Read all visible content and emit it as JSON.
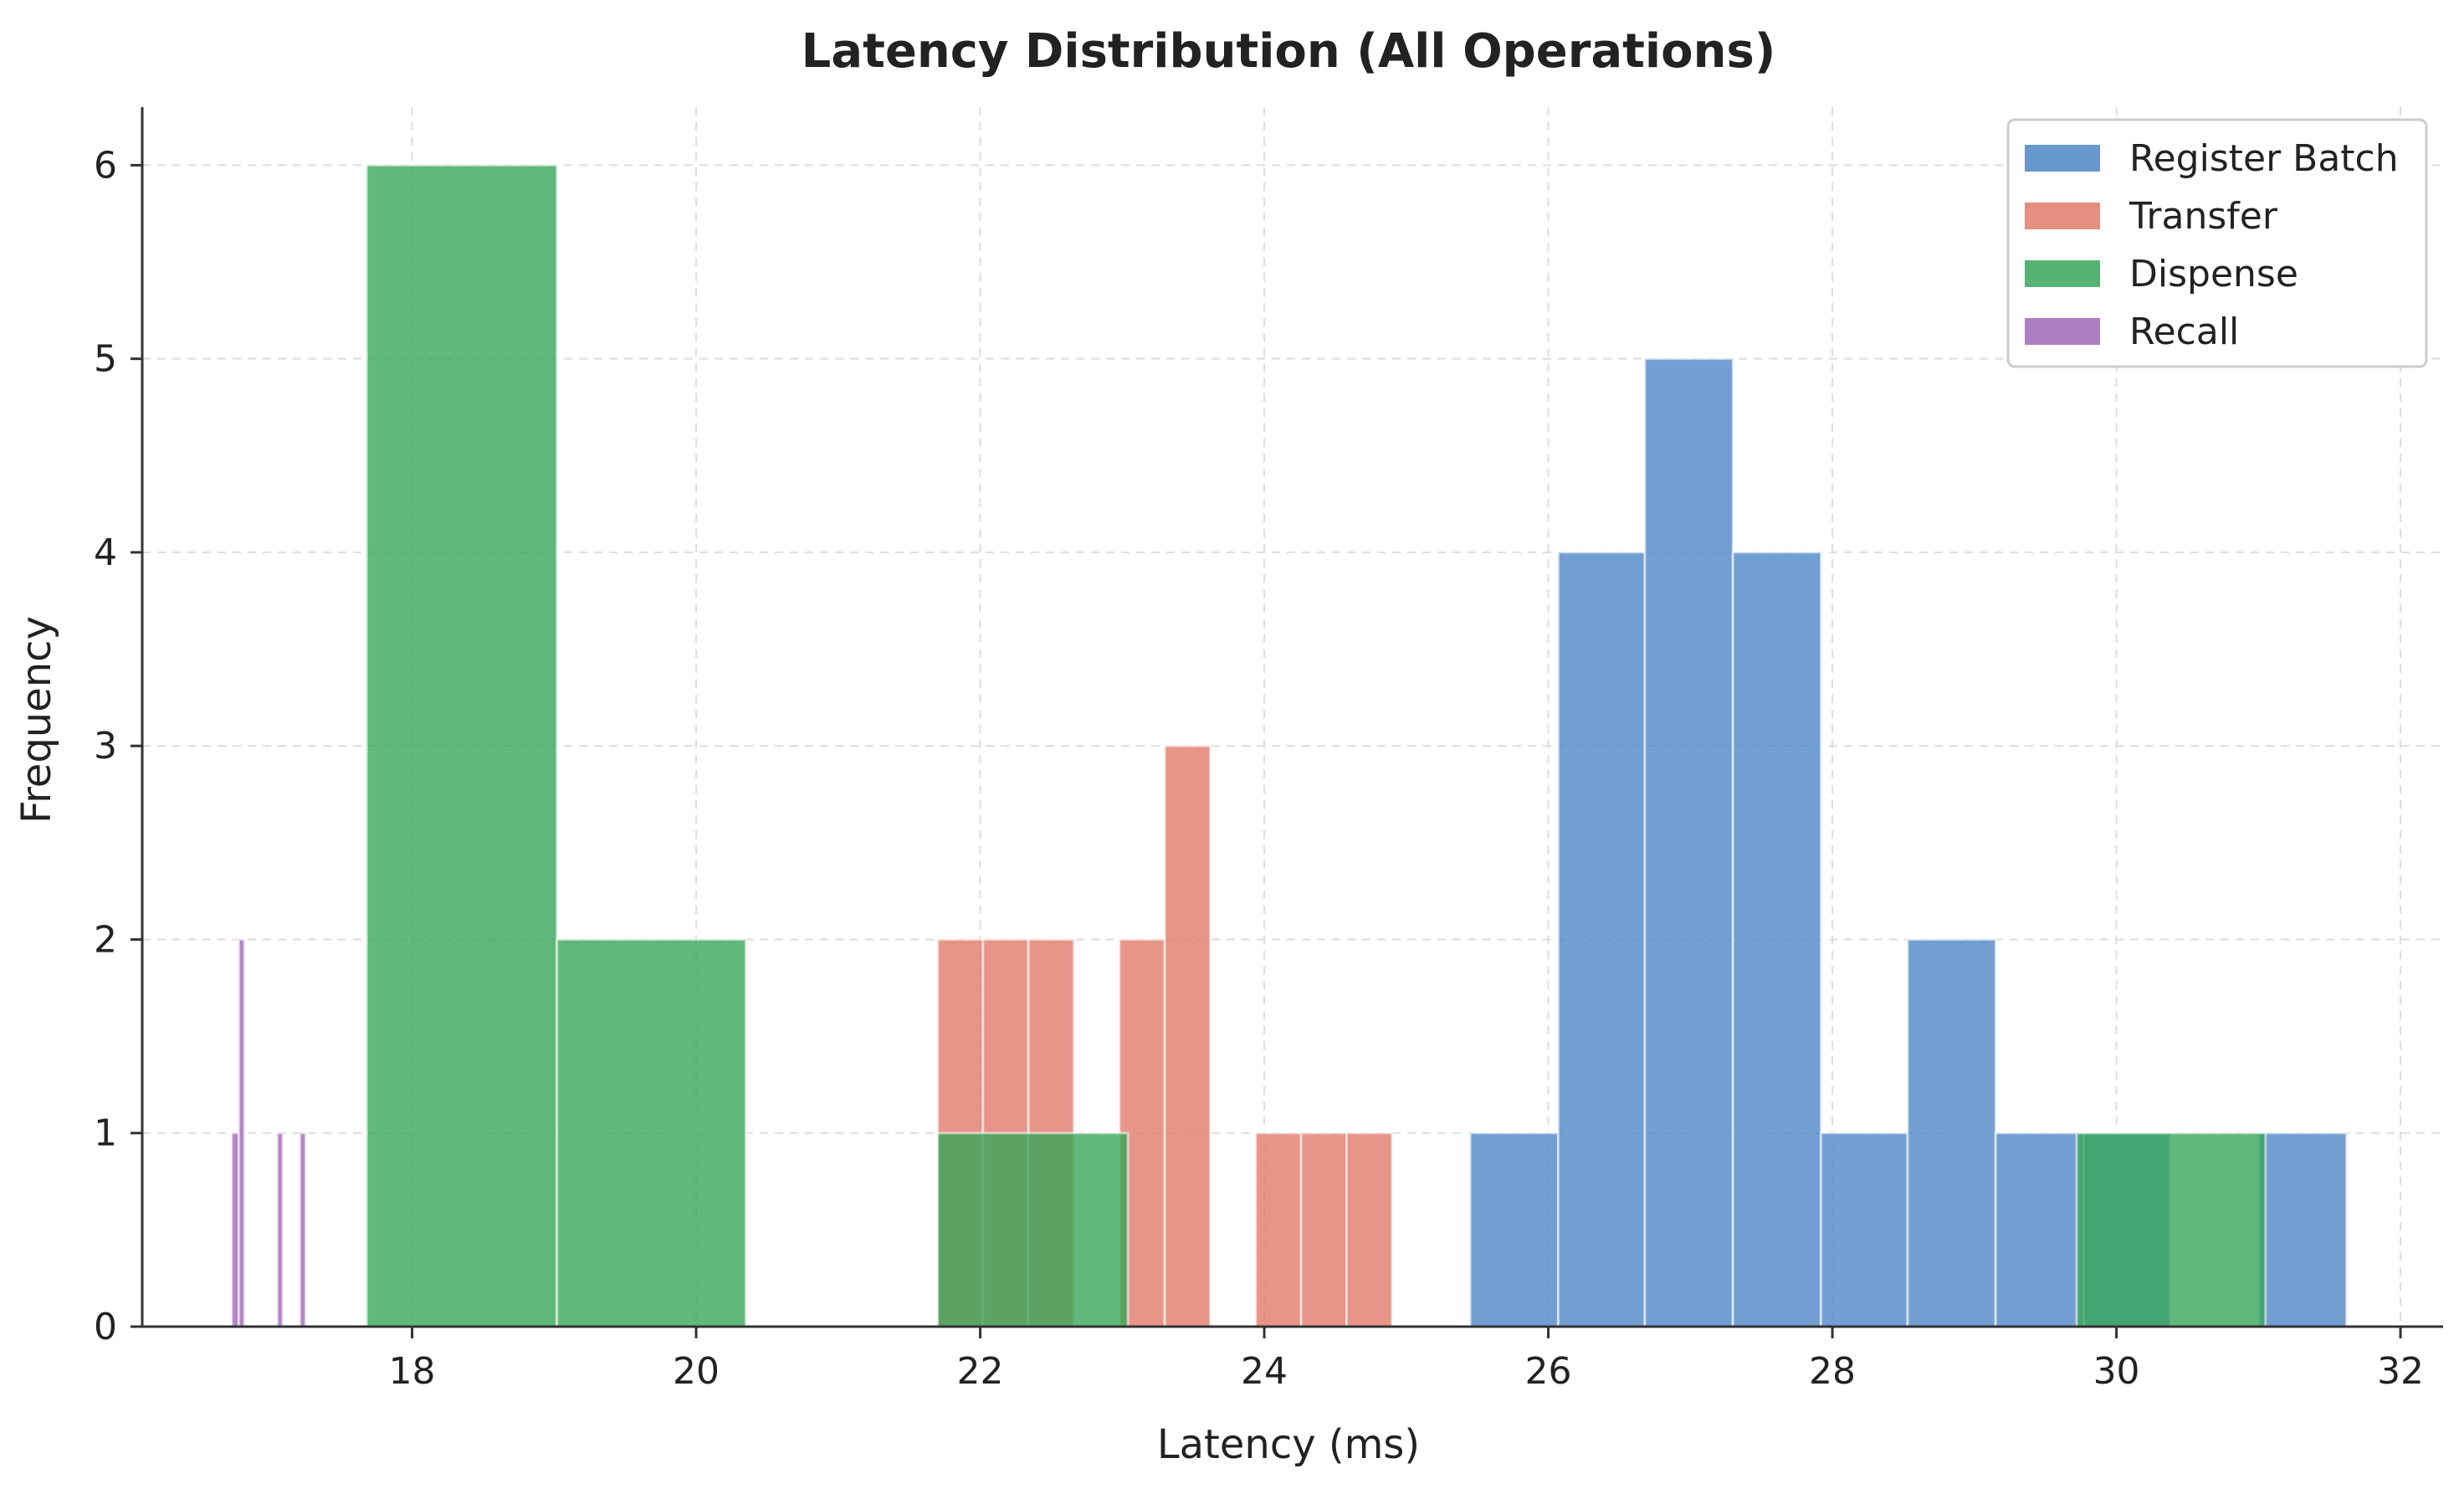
{
  "chart_data": {
    "type": "bar",
    "subtype": "overlapping-histogram",
    "title": "Latency Distribution (All Operations)",
    "xlabel": "Latency (ms)",
    "ylabel": "Frequency",
    "xlim": [
      16.1,
      32.3
    ],
    "ylim": [
      0,
      6.3
    ],
    "xticks": [
      18,
      20,
      22,
      24,
      26,
      28,
      30,
      32
    ],
    "yticks": [
      0,
      1,
      2,
      3,
      4,
      5,
      6
    ],
    "grid": true,
    "legend_position": "top-right",
    "series": [
      {
        "name": "Register Batch",
        "color": "#4f86c6",
        "bins": [
          {
            "x0": 25.45,
            "x1": 26.07,
            "count": 1
          },
          {
            "x0": 26.07,
            "x1": 26.68,
            "count": 4
          },
          {
            "x0": 26.68,
            "x1": 27.3,
            "count": 5
          },
          {
            "x0": 27.3,
            "x1": 27.92,
            "count": 4
          },
          {
            "x0": 27.92,
            "x1": 28.53,
            "count": 1
          },
          {
            "x0": 28.53,
            "x1": 29.15,
            "count": 2
          },
          {
            "x0": 29.15,
            "x1": 29.77,
            "count": 1
          },
          {
            "x0": 29.77,
            "x1": 30.38,
            "count": 1
          },
          {
            "x0": 30.38,
            "x1": 31.0,
            "count": 0
          },
          {
            "x0": 31.0,
            "x1": 31.62,
            "count": 1
          }
        ]
      },
      {
        "name": "Transfer",
        "color": "#e07b6a",
        "bins": [
          {
            "x0": 21.7,
            "x1": 22.02,
            "count": 2
          },
          {
            "x0": 22.02,
            "x1": 22.34,
            "count": 2
          },
          {
            "x0": 22.34,
            "x1": 22.66,
            "count": 2
          },
          {
            "x0": 22.66,
            "x1": 22.98,
            "count": 0
          },
          {
            "x0": 22.98,
            "x1": 23.3,
            "count": 2
          },
          {
            "x0": 23.3,
            "x1": 23.62,
            "count": 3
          },
          {
            "x0": 23.62,
            "x1": 23.94,
            "count": 0
          },
          {
            "x0": 23.94,
            "x1": 24.26,
            "count": 1
          },
          {
            "x0": 24.26,
            "x1": 24.58,
            "count": 1
          },
          {
            "x0": 24.58,
            "x1": 24.9,
            "count": 1
          }
        ]
      },
      {
        "name": "Dispense",
        "color": "#3aa65a",
        "bins": [
          {
            "x0": 17.68,
            "x1": 19.02,
            "count": 6
          },
          {
            "x0": 19.02,
            "x1": 20.35,
            "count": 2
          },
          {
            "x0": 21.7,
            "x1": 23.04,
            "count": 1
          },
          {
            "x0": 29.72,
            "x1": 31.05,
            "count": 1
          }
        ]
      },
      {
        "name": "Recall",
        "color": "#a066b8",
        "bins": [
          {
            "x0": 16.73,
            "x1": 16.78,
            "count": 1
          },
          {
            "x0": 16.78,
            "x1": 16.82,
            "count": 2
          },
          {
            "x0": 17.05,
            "x1": 17.09,
            "count": 1
          },
          {
            "x0": 17.21,
            "x1": 17.25,
            "count": 1
          }
        ]
      }
    ]
  }
}
